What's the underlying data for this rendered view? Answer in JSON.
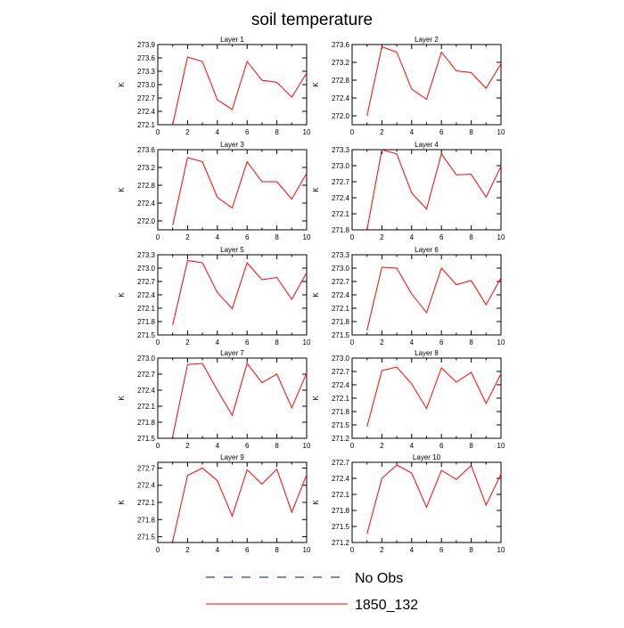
{
  "chart_data": {
    "type": "line",
    "title": "soil temperature",
    "colors": {
      "model": "#ff0000",
      "obs": "#0000cc",
      "axis": "#000000"
    },
    "xlim": [
      0,
      10
    ],
    "xticks": [
      0,
      2,
      4,
      6,
      8,
      10
    ],
    "x": [
      1,
      2,
      3,
      4,
      5,
      6,
      7,
      8,
      9,
      10
    ],
    "legend": {
      "placement": "bottom",
      "entries": [
        {
          "label": "No Obs",
          "style": "dashed",
          "color": "#0000cc"
        },
        {
          "label": "1850_132",
          "style": "solid",
          "color": "#ff0000"
        }
      ]
    },
    "panels": [
      {
        "title": "Layer 1",
        "ylabel": "K",
        "ylim": [
          272.1,
          273.9
        ],
        "yticks": [
          "273.9",
          "273.6",
          "273.3",
          "273.0",
          "272.7",
          "272.4",
          "272.1"
        ],
        "series": [
          {
            "name": "1850_132",
            "values": [
              272.1,
              273.62,
              273.52,
              272.66,
              272.44,
              273.52,
              273.1,
              273.05,
              272.72,
              273.26
            ]
          }
        ]
      },
      {
        "title": "Layer 2",
        "ylabel": "K",
        "ylim": [
          271.8,
          273.6
        ],
        "yticks": [
          "273.6",
          "273.2",
          "272.8",
          "272.4",
          "272.0"
        ],
        "series": [
          {
            "name": "1850_132",
            "values": [
              272.0,
              273.55,
              273.43,
              272.6,
              272.37,
              273.43,
              273.01,
              272.97,
              272.62,
              273.17
            ]
          }
        ]
      },
      {
        "title": "Layer 3",
        "ylabel": "K",
        "ylim": [
          271.8,
          273.6
        ],
        "yticks": [
          "273.6",
          "273.2",
          "272.8",
          "272.4",
          "272.0"
        ],
        "series": [
          {
            "name": "1850_132",
            "values": [
              271.9,
              273.42,
              273.33,
              272.53,
              272.29,
              273.33,
              272.88,
              272.88,
              272.49,
              273.07
            ]
          }
        ]
      },
      {
        "title": "Layer 4",
        "ylabel": "K",
        "ylim": [
          271.8,
          273.3
        ],
        "yticks": [
          "273.3",
          "273.0",
          "272.7",
          "272.4",
          "272.1",
          "271.8"
        ],
        "series": [
          {
            "name": "1850_132",
            "values": [
              271.8,
              273.3,
              273.22,
              272.49,
              272.19,
              273.22,
              272.83,
              272.84,
              272.41,
              272.99
            ]
          }
        ]
      },
      {
        "title": "Layer 5",
        "ylabel": "K",
        "ylim": [
          271.5,
          273.3
        ],
        "yticks": [
          "273.3",
          "273.0",
          "272.7",
          "272.4",
          "272.1",
          "271.8",
          "271.5"
        ],
        "series": [
          {
            "name": "1850_132",
            "values": [
              271.72,
              273.17,
              273.12,
              272.45,
              272.09,
              273.12,
              272.74,
              272.79,
              272.3,
              272.9
            ]
          }
        ]
      },
      {
        "title": "Layer 6",
        "ylabel": "K",
        "ylim": [
          271.5,
          273.3
        ],
        "yticks": [
          "273.3",
          "273.0",
          "272.7",
          "272.4",
          "272.1",
          "271.8",
          "271.5"
        ],
        "series": [
          {
            "name": "1850_132",
            "values": [
              271.6,
              273.02,
              273.0,
              272.42,
              272.0,
              273.0,
              272.63,
              272.72,
              272.18,
              272.78
            ]
          }
        ]
      },
      {
        "title": "Layer 7",
        "ylabel": "K",
        "ylim": [
          271.5,
          273.0
        ],
        "yticks": [
          "273.0",
          "272.7",
          "272.4",
          "272.1",
          "271.8",
          "271.5"
        ],
        "series": [
          {
            "name": "1850_132",
            "values": [
              271.53,
              272.88,
              272.9,
              272.4,
              271.93,
              272.9,
              272.54,
              272.7,
              272.07,
              272.72
            ]
          }
        ]
      },
      {
        "title": "Layer 8",
        "ylabel": "K",
        "ylim": [
          271.2,
          273.0
        ],
        "yticks": [
          "273.0",
          "272.7",
          "272.4",
          "272.1",
          "271.8",
          "271.5",
          "271.2"
        ],
        "series": [
          {
            "name": "1850_132",
            "values": [
              271.46,
              272.72,
              272.8,
              272.42,
              271.87,
              272.78,
              272.46,
              272.68,
              271.98,
              272.65
            ]
          }
        ]
      },
      {
        "title": "Layer 9",
        "ylabel": "K",
        "ylim": [
          271.4,
          272.8
        ],
        "yticks": [
          "272.7",
          "272.4",
          "272.1",
          "271.8",
          "271.5"
        ],
        "series": [
          {
            "name": "1850_132",
            "values": [
              271.42,
              272.57,
              272.7,
              272.48,
              271.86,
              272.67,
              272.42,
              272.68,
              271.93,
              272.58
            ]
          }
        ]
      },
      {
        "title": "Layer 10",
        "ylabel": "K",
        "ylim": [
          271.2,
          272.7
        ],
        "yticks": [
          "272.7",
          "272.4",
          "272.1",
          "271.8",
          "271.5",
          "271.2"
        ],
        "series": [
          {
            "name": "1850_132",
            "values": [
              271.36,
              272.4,
              272.65,
              272.5,
              271.86,
              272.55,
              272.38,
              272.64,
              271.9,
              272.48
            ]
          }
        ]
      }
    ]
  }
}
